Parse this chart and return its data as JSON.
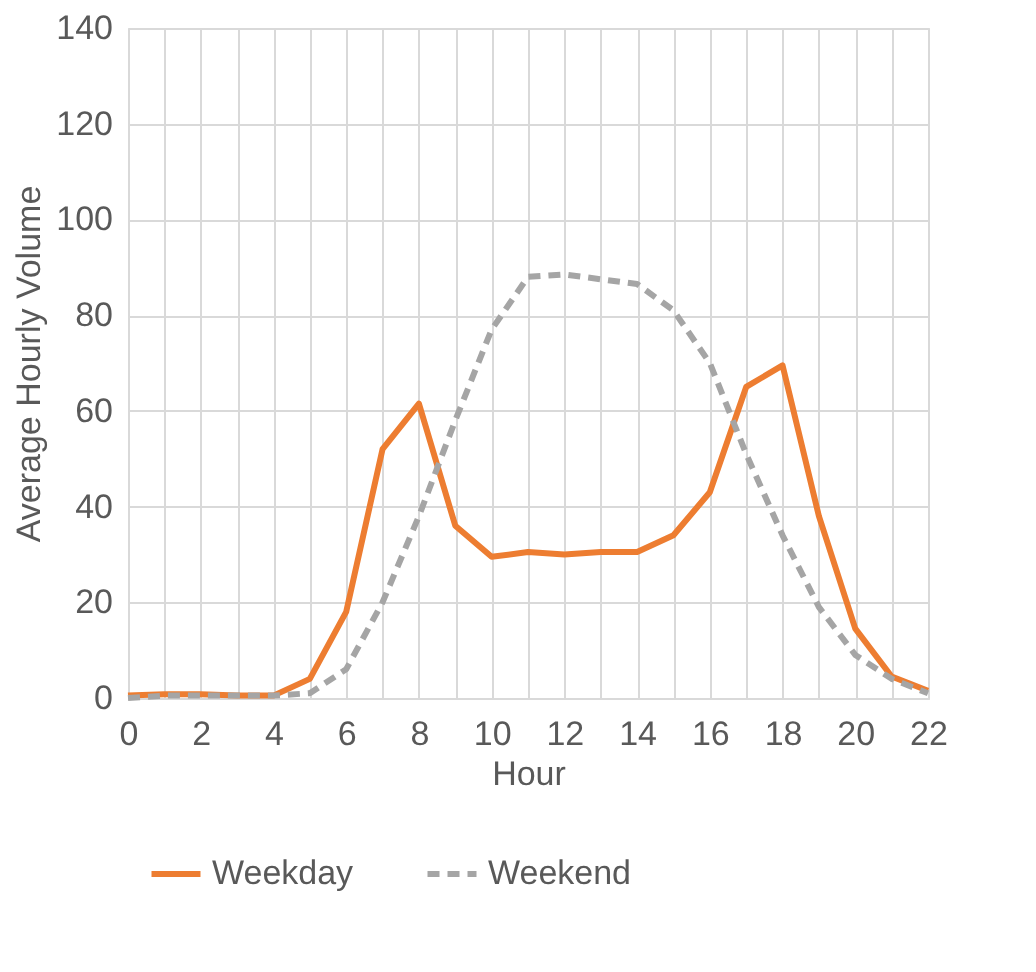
{
  "chart_data": {
    "type": "line",
    "xlabel": "Hour",
    "ylabel": "Average Hourly Volume",
    "x": [
      0,
      1,
      2,
      3,
      4,
      5,
      6,
      7,
      8,
      9,
      10,
      11,
      12,
      13,
      14,
      15,
      16,
      17,
      18,
      19,
      20,
      21,
      22
    ],
    "series": [
      {
        "name": "Weekday",
        "color": "#ed7d31",
        "line_style": "solid",
        "values": [
          0.5,
          0.8,
          0.8,
          0.5,
          0.5,
          4,
          18,
          52,
          61.5,
          36,
          29.5,
          30.5,
          30,
          30.5,
          30.5,
          34,
          43,
          65,
          69.5,
          38,
          14.5,
          4.5,
          1.5
        ]
      },
      {
        "name": "Weekend",
        "color": "#a5a5a5",
        "line_style": "dashed",
        "values": [
          0,
          0.5,
          0.5,
          0.5,
          0.5,
          1,
          6,
          20,
          38,
          58,
          77,
          88,
          88.5,
          87.5,
          86.5,
          81,
          70,
          51,
          34,
          19,
          9,
          4,
          1
        ]
      }
    ],
    "xlim": [
      0,
      22
    ],
    "xticks": [
      0,
      2,
      4,
      6,
      8,
      10,
      12,
      14,
      16,
      18,
      20,
      22
    ],
    "ylim": [
      0,
      140
    ],
    "yticks": [
      0,
      20,
      40,
      60,
      80,
      100,
      120,
      140
    ],
    "grid": true,
    "legend": "bottom",
    "marker": "none"
  }
}
